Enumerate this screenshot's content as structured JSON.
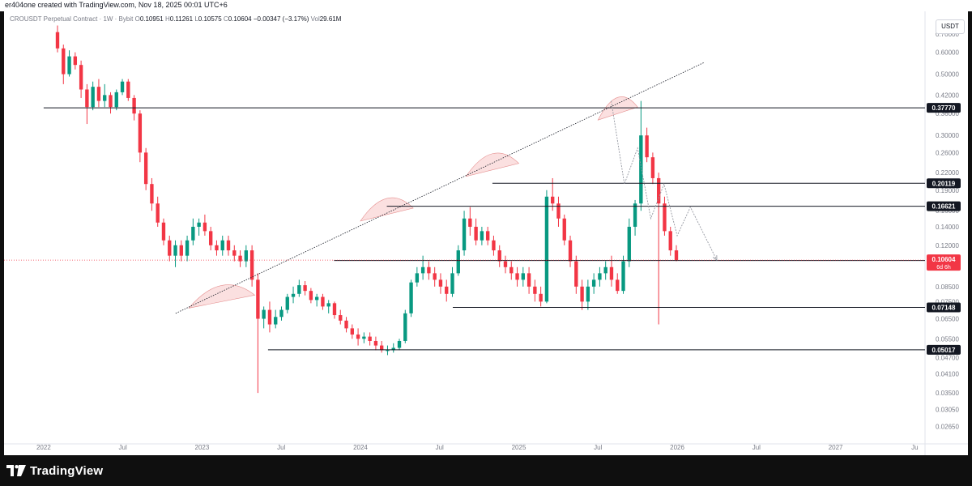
{
  "header": {
    "author_line": "er404one created with TradingView.com, Nov 18, 2025 00:01 UTC+6"
  },
  "legend": {
    "symbol": "CROUSDT Perpetual Contract · 1W · Bybit",
    "o_label": "O",
    "o_value": "0.10951",
    "h_label": "H",
    "h_value": "0.11261",
    "l_label": "L",
    "l_value": "0.10575",
    "c_label": "C",
    "c_value": "0.10604",
    "change": "−0.00347 (−3.17%)",
    "vol_label": "Vol",
    "vol_value": "29.61M"
  },
  "currency_button": "USDT",
  "footer": {
    "brand": "TradingView"
  },
  "colors": {
    "up": "#089981",
    "down": "#f23645",
    "line": "#131722",
    "axis_text": "#787b86",
    "price_label": "#f23645",
    "arc_fill": "#fbe0e0"
  },
  "chart_data": {
    "type": "candlestick",
    "scale": "log",
    "ylim": [
      0.024,
      0.8
    ],
    "y_ticks": [
      "0.70000",
      "0.60000",
      "0.50000",
      "0.42000",
      "0.36000",
      "0.30000",
      "0.26000",
      "0.22000",
      "0.19000",
      "0.16000",
      "0.14000",
      "0.12000",
      "0.10000",
      "0.08500",
      "0.07500",
      "0.06500",
      "0.05500",
      "0.04700",
      "0.04100",
      "0.03500",
      "0.03050",
      "0.02650"
    ],
    "x_ticks": [
      "2022",
      "Jul",
      "2023",
      "Jul",
      "2024",
      "Jul",
      "2025",
      "Jul",
      "2026",
      "Jul",
      "2027",
      "Ju"
    ],
    "horizontal_levels": [
      {
        "label": "0.37770",
        "value": 0.3777,
        "from": "2022-01",
        "to": "2025-12"
      },
      {
        "label": "0.20119",
        "value": 0.20119,
        "from": "2024-11",
        "to": "2025-12"
      },
      {
        "label": "0.16621",
        "value": 0.16621,
        "from": "2024-03",
        "to": "2025-12"
      },
      {
        "label": "0.10570",
        "value": 0.1057,
        "from": "2023-11",
        "to": "2025-12"
      },
      {
        "label": "0.07148",
        "value": 0.07148,
        "from": "2024-08",
        "to": "2025-12"
      },
      {
        "label": "0.05017",
        "value": 0.05017,
        "from": "2023-06",
        "to": "2025-12"
      }
    ],
    "last_price": {
      "value": "0.10604",
      "countdown": "6d 6h",
      "numeric": 0.10604
    },
    "trendline": {
      "from": [
        "2022-11",
        0.068
      ],
      "to": [
        "2026-03",
        0.55
      ]
    },
    "projection_path": [
      [
        "2025-08",
        0.4
      ],
      [
        "2025-09",
        0.2
      ],
      [
        "2025-10",
        0.27
      ],
      [
        "2025-11",
        0.15
      ],
      [
        "2025-12",
        0.2
      ],
      [
        "2026-01",
        0.13
      ],
      [
        "2026-02",
        0.165
      ],
      [
        "2026-04",
        0.106
      ]
    ],
    "arcs": [
      {
        "from": "2022-12",
        "to": "2023-05",
        "base": 0.075
      },
      {
        "from": "2024-01",
        "to": "2024-05",
        "base": 0.155
      },
      {
        "from": "2024-09",
        "to": "2025-01",
        "base": 0.225
      },
      {
        "from": "2025-07",
        "to": "2025-10",
        "base": 0.36
      }
    ],
    "series": [
      {
        "name": "CROUSDT",
        "ohlc": [
          [
            0.71,
            0.75,
            0.6,
            0.62
          ],
          [
            0.62,
            0.64,
            0.46,
            0.5
          ],
          [
            0.5,
            0.61,
            0.49,
            0.58
          ],
          [
            0.58,
            0.6,
            0.52,
            0.54
          ],
          [
            0.54,
            0.56,
            0.41,
            0.44
          ],
          [
            0.44,
            0.46,
            0.33,
            0.38
          ],
          [
            0.38,
            0.47,
            0.37,
            0.45
          ],
          [
            0.45,
            0.48,
            0.38,
            0.4
          ],
          [
            0.4,
            0.46,
            0.38,
            0.42
          ],
          [
            0.42,
            0.43,
            0.36,
            0.38
          ],
          [
            0.38,
            0.44,
            0.37,
            0.43
          ],
          [
            0.43,
            0.48,
            0.42,
            0.47
          ],
          [
            0.47,
            0.48,
            0.4,
            0.41
          ],
          [
            0.41,
            0.42,
            0.34,
            0.36
          ],
          [
            0.36,
            0.37,
            0.24,
            0.26
          ],
          [
            0.26,
            0.27,
            0.19,
            0.2
          ],
          [
            0.2,
            0.21,
            0.16,
            0.17
          ],
          [
            0.17,
            0.18,
            0.14,
            0.145
          ],
          [
            0.145,
            0.15,
            0.12,
            0.125
          ],
          [
            0.125,
            0.13,
            0.105,
            0.11
          ],
          [
            0.11,
            0.125,
            0.1,
            0.12
          ],
          [
            0.12,
            0.125,
            0.105,
            0.11
          ],
          [
            0.11,
            0.13,
            0.105,
            0.125
          ],
          [
            0.125,
            0.15,
            0.12,
            0.14
          ],
          [
            0.14,
            0.15,
            0.13,
            0.145
          ],
          [
            0.145,
            0.155,
            0.13,
            0.135
          ],
          [
            0.135,
            0.14,
            0.115,
            0.12
          ],
          [
            0.12,
            0.125,
            0.11,
            0.115
          ],
          [
            0.115,
            0.13,
            0.11,
            0.125
          ],
          [
            0.125,
            0.13,
            0.11,
            0.115
          ],
          [
            0.115,
            0.12,
            0.105,
            0.11
          ],
          [
            0.11,
            0.115,
            0.1,
            0.105
          ],
          [
            0.105,
            0.12,
            0.1,
            0.115
          ],
          [
            0.115,
            0.12,
            0.085,
            0.09
          ],
          [
            0.09,
            0.095,
            0.035,
            0.065
          ],
          [
            0.065,
            0.072,
            0.06,
            0.07
          ],
          [
            0.07,
            0.075,
            0.058,
            0.062
          ],
          [
            0.062,
            0.07,
            0.06,
            0.066
          ],
          [
            0.066,
            0.072,
            0.064,
            0.07
          ],
          [
            0.07,
            0.08,
            0.068,
            0.078
          ],
          [
            0.078,
            0.085,
            0.074,
            0.08
          ],
          [
            0.08,
            0.09,
            0.078,
            0.086
          ],
          [
            0.086,
            0.089,
            0.079,
            0.082
          ],
          [
            0.082,
            0.084,
            0.074,
            0.076
          ],
          [
            0.076,
            0.08,
            0.072,
            0.078
          ],
          [
            0.078,
            0.08,
            0.07,
            0.072
          ],
          [
            0.072,
            0.076,
            0.068,
            0.074
          ],
          [
            0.074,
            0.075,
            0.065,
            0.067
          ],
          [
            0.067,
            0.07,
            0.062,
            0.064
          ],
          [
            0.064,
            0.066,
            0.058,
            0.06
          ],
          [
            0.06,
            0.062,
            0.055,
            0.057
          ],
          [
            0.057,
            0.06,
            0.052,
            0.055
          ],
          [
            0.055,
            0.058,
            0.053,
            0.056
          ],
          [
            0.056,
            0.058,
            0.052,
            0.054
          ],
          [
            0.054,
            0.056,
            0.05,
            0.052
          ],
          [
            0.052,
            0.054,
            0.049,
            0.05
          ],
          [
            0.05,
            0.052,
            0.048,
            0.05
          ],
          [
            0.05,
            0.053,
            0.049,
            0.051
          ],
          [
            0.051,
            0.055,
            0.05,
            0.054
          ],
          [
            0.054,
            0.07,
            0.053,
            0.068
          ],
          [
            0.068,
            0.09,
            0.066,
            0.088
          ],
          [
            0.088,
            0.1,
            0.085,
            0.095
          ],
          [
            0.095,
            0.11,
            0.09,
            0.1
          ],
          [
            0.1,
            0.105,
            0.09,
            0.095
          ],
          [
            0.095,
            0.1,
            0.085,
            0.09
          ],
          [
            0.09,
            0.095,
            0.08,
            0.085
          ],
          [
            0.085,
            0.09,
            0.075,
            0.08
          ],
          [
            0.08,
            0.1,
            0.078,
            0.095
          ],
          [
            0.095,
            0.12,
            0.093,
            0.115
          ],
          [
            0.115,
            0.16,
            0.11,
            0.15
          ],
          [
            0.15,
            0.165,
            0.13,
            0.14
          ],
          [
            0.14,
            0.15,
            0.12,
            0.125
          ],
          [
            0.125,
            0.14,
            0.12,
            0.135
          ],
          [
            0.135,
            0.14,
            0.12,
            0.125
          ],
          [
            0.125,
            0.13,
            0.11,
            0.115
          ],
          [
            0.115,
            0.12,
            0.1,
            0.105
          ],
          [
            0.105,
            0.11,
            0.095,
            0.1
          ],
          [
            0.1,
            0.105,
            0.09,
            0.095
          ],
          [
            0.095,
            0.1,
            0.085,
            0.09
          ],
          [
            0.09,
            0.1,
            0.085,
            0.095
          ],
          [
            0.095,
            0.1,
            0.08,
            0.085
          ],
          [
            0.085,
            0.09,
            0.075,
            0.08
          ],
          [
            0.08,
            0.085,
            0.072,
            0.075
          ],
          [
            0.075,
            0.19,
            0.074,
            0.18
          ],
          [
            0.18,
            0.21,
            0.16,
            0.17
          ],
          [
            0.17,
            0.18,
            0.14,
            0.15
          ],
          [
            0.15,
            0.155,
            0.12,
            0.125
          ],
          [
            0.125,
            0.13,
            0.1,
            0.105
          ],
          [
            0.105,
            0.11,
            0.08,
            0.085
          ],
          [
            0.085,
            0.09,
            0.07,
            0.075
          ],
          [
            0.075,
            0.09,
            0.07,
            0.085
          ],
          [
            0.085,
            0.095,
            0.08,
            0.09
          ],
          [
            0.09,
            0.1,
            0.085,
            0.095
          ],
          [
            0.095,
            0.105,
            0.09,
            0.1
          ],
          [
            0.1,
            0.11,
            0.085,
            0.09
          ],
          [
            0.09,
            0.095,
            0.08,
            0.082
          ],
          [
            0.082,
            0.11,
            0.08,
            0.105
          ],
          [
            0.105,
            0.15,
            0.1,
            0.14
          ],
          [
            0.14,
            0.175,
            0.13,
            0.17
          ],
          [
            0.17,
            0.4,
            0.16,
            0.3
          ],
          [
            0.3,
            0.32,
            0.24,
            0.25
          ],
          [
            0.25,
            0.26,
            0.2,
            0.21
          ],
          [
            0.21,
            0.22,
            0.062,
            0.17
          ],
          [
            0.17,
            0.18,
            0.13,
            0.135
          ],
          [
            0.135,
            0.14,
            0.11,
            0.115
          ],
          [
            0.115,
            0.12,
            0.105,
            0.106
          ]
        ]
      }
    ]
  }
}
